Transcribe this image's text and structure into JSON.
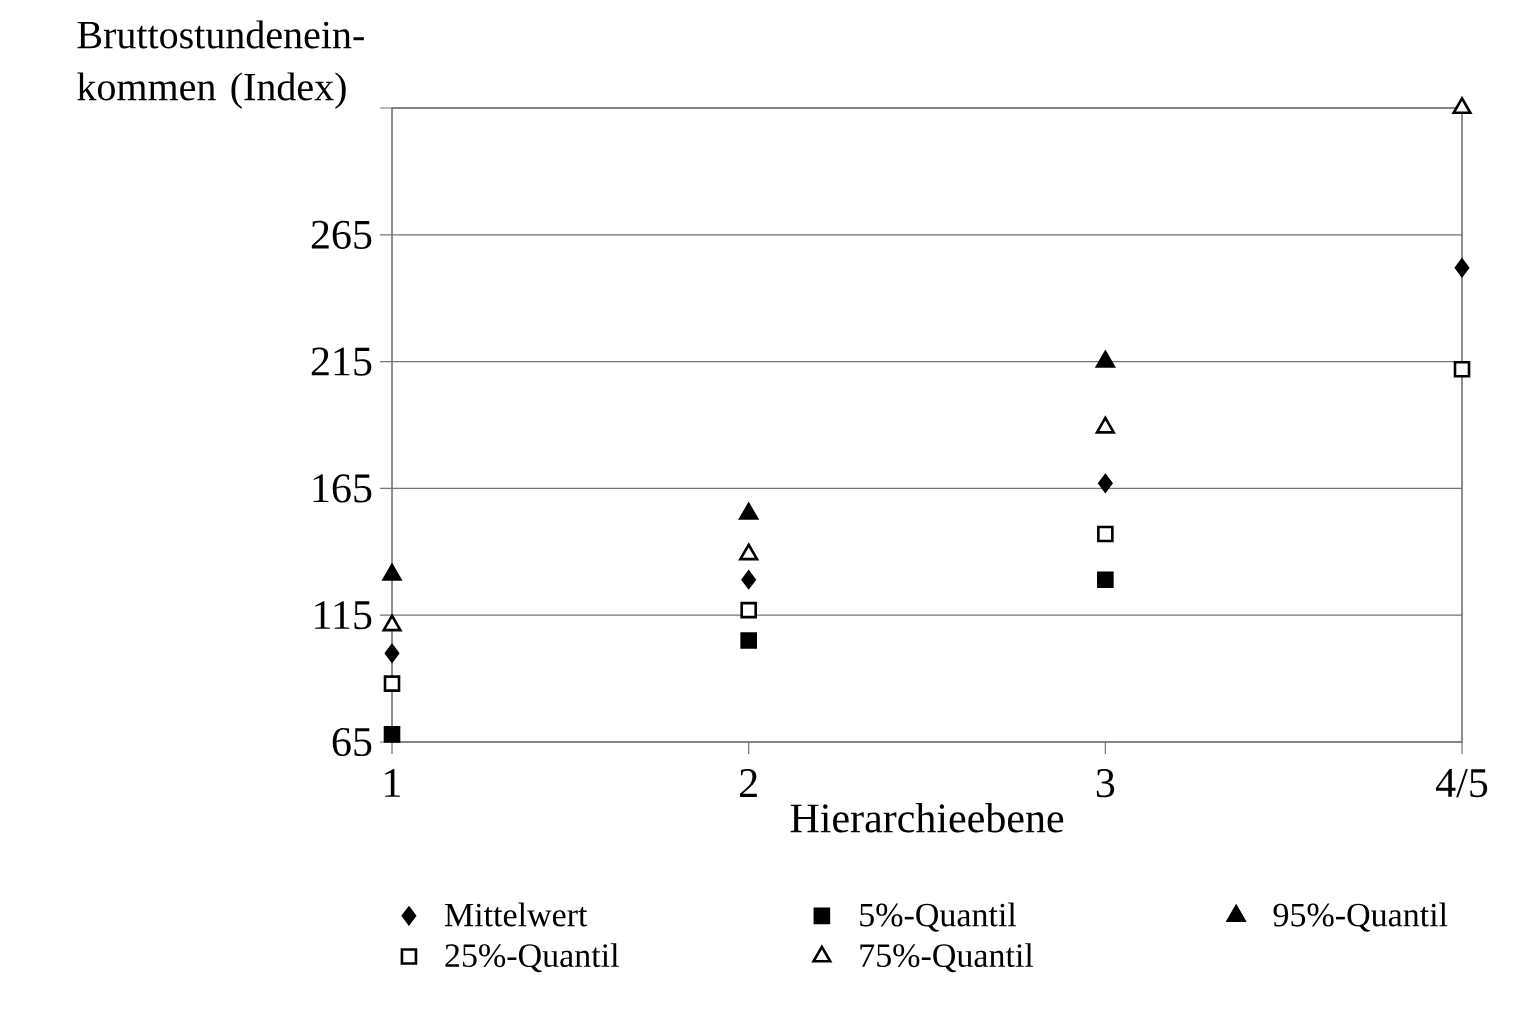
{
  "chart_data": {
    "type": "scatter",
    "ylabel": "Bruttostundenein-kommen (Index)",
    "xlabel": "Hierarchieebene",
    "categories": [
      "1",
      "2",
      "3",
      "4/5"
    ],
    "ylim": [
      65,
      315
    ],
    "yticks": [
      65,
      115,
      165,
      215,
      265,
      {
        "value": 315,
        "label": null
      }
    ],
    "grid": "y",
    "legend": "bottom",
    "series": [
      {
        "name": "Mittelwert",
        "color": "#000000",
        "marker": "diamond",
        "values": [
          100,
          129,
          167,
          252
        ]
      },
      {
        "name": "5%-Quantil",
        "color": "#000000",
        "marker": "square",
        "values": [
          68,
          105,
          129,
          null
        ]
      },
      {
        "name": "95%-Quantil",
        "color": "#000000",
        "marker": "triangle",
        "values": [
          131,
          155,
          215,
          null
        ]
      },
      {
        "name": "25%-Quantil",
        "color": "#ffffff",
        "marker": "square",
        "values": [
          88,
          117,
          147,
          212
        ]
      },
      {
        "name": "75%-Quantil",
        "color": "#ffffff",
        "marker": "triangle",
        "values": [
          111,
          139,
          189,
          315
        ]
      }
    ]
  }
}
